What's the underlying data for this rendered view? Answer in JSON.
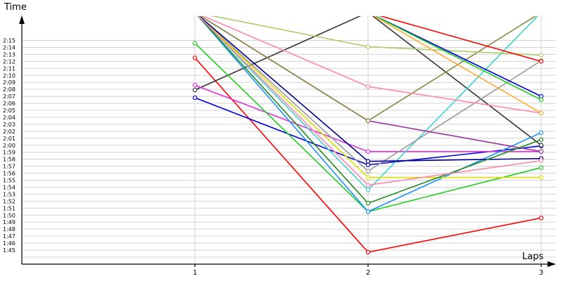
{
  "chart_data": {
    "type": "line",
    "ylabel": "Time",
    "xlabel": "Laps",
    "x": [
      1,
      2,
      3
    ],
    "x_tick_labels": [
      "1",
      "2",
      "3"
    ],
    "y_tick_labels": [
      "1:45",
      "1:46",
      "1:47",
      "1:48",
      "1:49",
      "1:50",
      "1:51",
      "1:52",
      "1:53",
      "1:54",
      "1:55",
      "1:56",
      "1:57",
      "1:58",
      "1:59",
      "2:00",
      "2:01",
      "2:02",
      "2:03",
      "2:04",
      "2:05",
      "2:06",
      "2:07",
      "2:08",
      "2:09",
      "2:10",
      "2:11",
      "2:12",
      "2:13",
      "2:14",
      "2:15"
    ],
    "ylim_seconds": [
      101,
      136
    ],
    "grid": true,
    "series": [
      {
        "color": "#ff0000",
        "values": [
          132.5,
          104.7,
          109.6
        ]
      },
      {
        "color": "#0000dd",
        "values": [
          126.8,
          117.2,
          119.9
        ]
      },
      {
        "color": "#333333",
        "values": [
          127.9,
          139.0,
          120.0
        ]
      },
      {
        "color": "#dd33dd",
        "values": [
          128.6,
          119.1,
          119.1
        ]
      },
      {
        "color": "#22cc22",
        "values": [
          134.6,
          110.5,
          116.8
        ]
      },
      {
        "color": "#1e90ff",
        "values": [
          139.0,
          110.5,
          121.8
        ]
      },
      {
        "color": "#40d0d0",
        "values": [
          139.0,
          113.6,
          139.0
        ]
      },
      {
        "color": "#9a9a9a",
        "values": [
          139.0,
          116.3,
          132.1
        ]
      },
      {
        "color": "#dddd00",
        "values": [
          139.0,
          115.4,
          115.4
        ]
      },
      {
        "color": "#000088",
        "values": [
          139.0,
          117.7,
          118.1
        ]
      },
      {
        "color": "#993399",
        "values": [
          139.0,
          123.5,
          119.1
        ]
      },
      {
        "color": "#888844",
        "values": [
          139.0,
          123.5,
          139.0
        ]
      },
      {
        "color": "#228b22",
        "values": [
          139.0,
          111.7,
          120.8
        ]
      },
      {
        "color": "#aacc66",
        "values": [
          139.0,
          134.1,
          132.9
        ]
      },
      {
        "color": "#ff88aa",
        "values": [
          139.0,
          128.4,
          124.6
        ]
      },
      {
        "color": "#ff88aa",
        "values": [
          139.0,
          114.3,
          117.8
        ]
      },
      {
        "color": "#ff0000",
        "values": [
          139.0,
          139.0,
          132.0
        ]
      },
      {
        "color": "#0000dd",
        "values": [
          139.0,
          139.0,
          127.0
        ]
      },
      {
        "color": "#22cc22",
        "values": [
          139.0,
          139.0,
          126.5
        ]
      },
      {
        "color": "#ffaa33",
        "values": [
          139.0,
          139.0,
          124.6
        ]
      }
    ]
  }
}
